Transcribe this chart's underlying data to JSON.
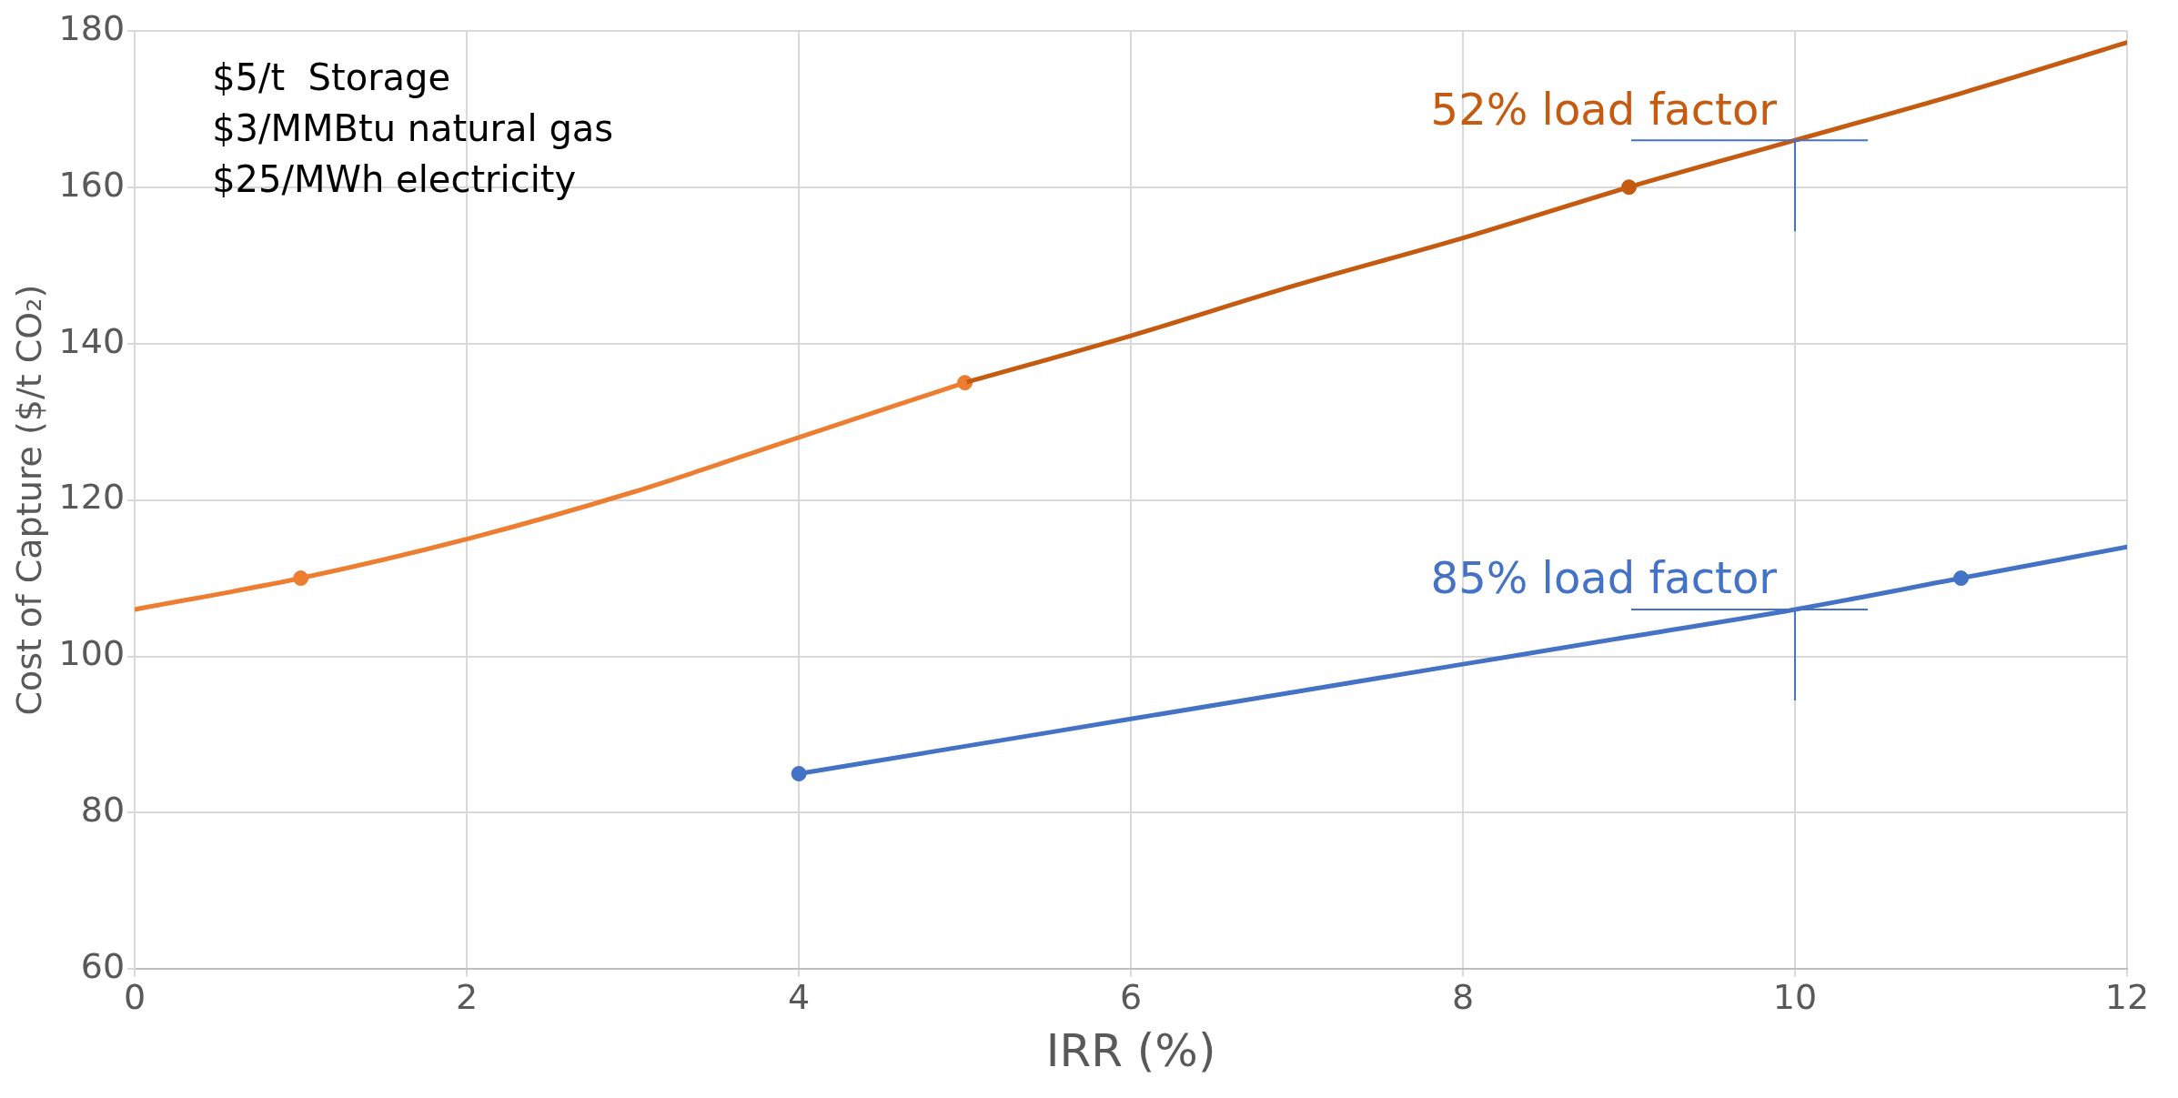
{
  "chart_data": {
    "type": "line",
    "xlabel": "IRR (%)",
    "ylabel": "Cost of Capture ($/t CO₂)",
    "xlim": [
      0,
      12
    ],
    "xticks": [
      0,
      2,
      4,
      6,
      8,
      10,
      12
    ],
    "ylim": [
      60,
      180
    ],
    "yticks": [
      60,
      80,
      100,
      120,
      140,
      160,
      180
    ],
    "grid": true,
    "legend": false,
    "marker": "none",
    "series": [
      {
        "color": "#ed7d31",
        "x": [
          0,
          1,
          2,
          3,
          4,
          5
        ],
        "values": [
          106,
          110,
          115,
          121,
          128,
          135
        ]
      },
      {
        "color": "#c55a11",
        "x": [
          5,
          6,
          7,
          8,
          9,
          10,
          11,
          12
        ],
        "values": [
          135,
          141,
          147.5,
          153.5,
          160,
          166,
          172,
          178.5
        ]
      },
      {
        "color": "#4472c4",
        "x": [
          4,
          5,
          6,
          7,
          8,
          9,
          10,
          11,
          12
        ],
        "values": [
          85,
          88.5,
          92,
          95.5,
          99,
          102.5,
          106,
          110,
          114
        ]
      },
      {
        "type": "scatter",
        "marker": "circle",
        "color": "#ed7d31",
        "x": [
          1,
          5
        ],
        "values": [
          110,
          135
        ]
      },
      {
        "type": "scatter",
        "marker": "circle",
        "color": "#c55a11",
        "x": [
          9
        ],
        "values": [
          160
        ]
      },
      {
        "type": "scatter",
        "marker": "circle",
        "color": "#4472c4",
        "x": [
          4,
          11
        ],
        "values": [
          85,
          110
        ]
      }
    ],
    "annotations": [
      "$5/t  Storage",
      "$3/MMBtu natural gas",
      "$25/MWh electricity",
      {
        "text": "52% load factor",
        "x": 10,
        "y": 166
      },
      {
        "text": "85% load factor",
        "x": 10,
        "y": 106
      }
    ]
  }
}
